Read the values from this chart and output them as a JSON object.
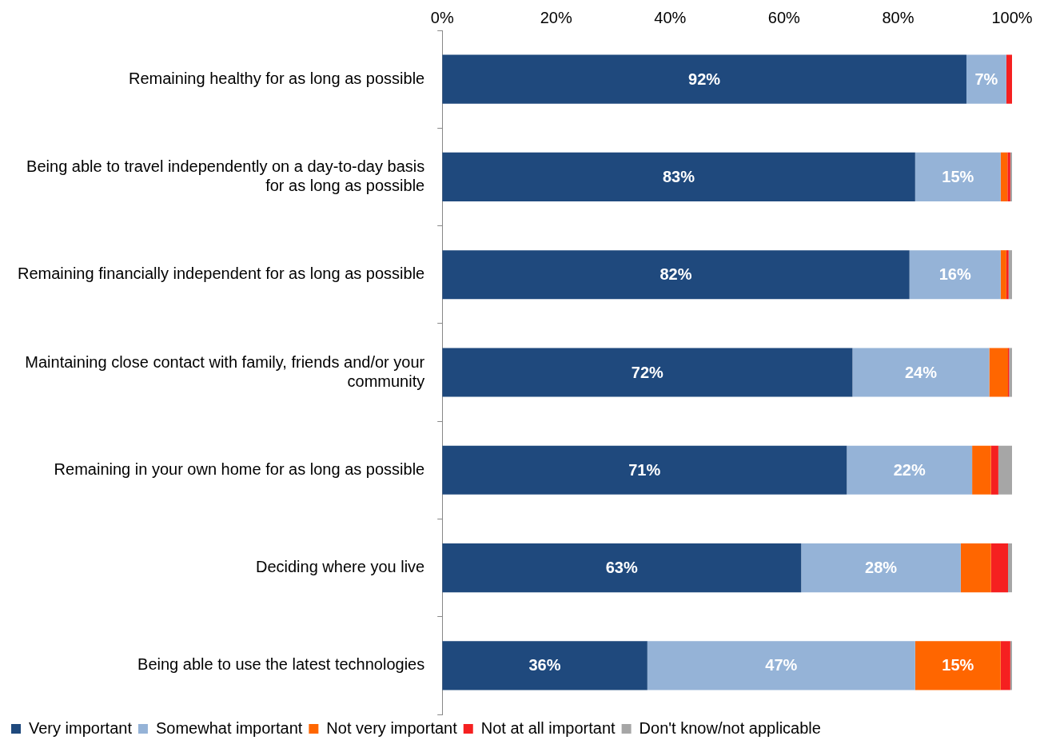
{
  "chart_data": {
    "type": "bar",
    "orientation": "horizontal",
    "stacked": true,
    "categories": [
      "Remaining healthy for as long as possible",
      "Being able to travel independently on a day-to-day basis for as long as possible",
      "Remaining financially independent for as long as possible",
      "Maintaining close contact with family, friends and/or your community",
      "Remaining in your own home for as long as possible",
      "Deciding where you live",
      "Being able to use the latest technologies"
    ],
    "series": [
      {
        "name": "Very important",
        "color": "#1f497d",
        "values": [
          92,
          83,
          82,
          72,
          71,
          63,
          36
        ],
        "value_labels": [
          "92%",
          "83%",
          "82%",
          "72%",
          "71%",
          "63%",
          "36%"
        ]
      },
      {
        "name": "Somewhat important",
        "color": "#95b3d7",
        "values": [
          7,
          15,
          16,
          24,
          22,
          28,
          47
        ],
        "value_labels": [
          "7%",
          "15%",
          "16%",
          "24%",
          "22%",
          "28%",
          "47%"
        ]
      },
      {
        "name": "Not very important",
        "color": "#ff6600",
        "values": [
          0,
          1.2,
          1,
          3.3,
          3.3,
          5.3,
          15
        ],
        "value_labels": [
          null,
          null,
          null,
          null,
          null,
          null,
          "15%"
        ]
      },
      {
        "name": "Not at all important",
        "color": "#f52020",
        "values": [
          1,
          0.5,
          0.4,
          0.2,
          1.3,
          3,
          1.7
        ]
      },
      {
        "name": "Don't know/not applicable",
        "color": "#a6a6a6",
        "values": [
          0,
          0.3,
          0.6,
          0.5,
          2.4,
          0.7,
          0.3
        ]
      }
    ],
    "xlim": [
      0,
      100
    ],
    "xticks": [
      {
        "value": 0,
        "label": "0%"
      },
      {
        "value": 20,
        "label": "20%"
      },
      {
        "value": 40,
        "label": "40%"
      },
      {
        "value": 60,
        "label": "60%"
      },
      {
        "value": 80,
        "label": "80%"
      },
      {
        "value": 100,
        "label": "100%"
      }
    ],
    "grid": false,
    "legend": "bottom"
  }
}
